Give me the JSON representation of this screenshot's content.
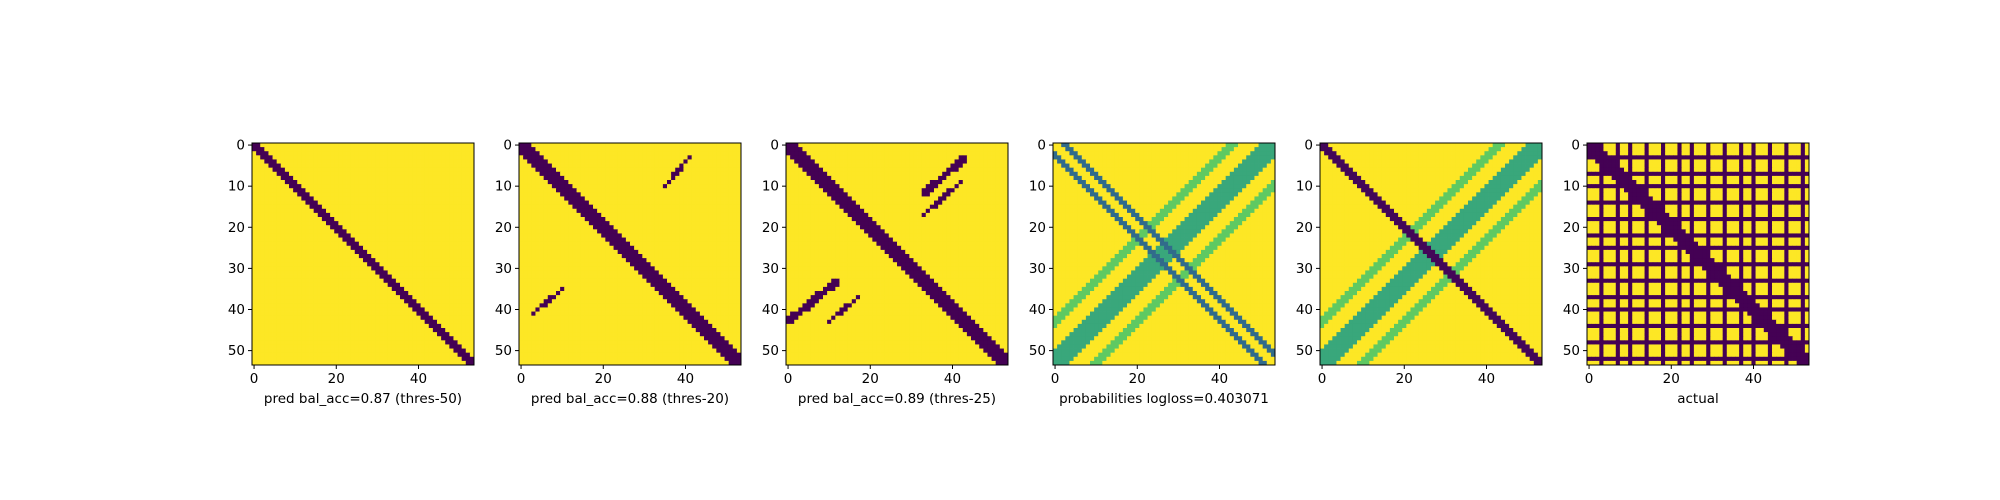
{
  "figure": {
    "panels": [
      {
        "id": "p1",
        "xlabel": "pred bal_acc=0.87 (thres-50)"
      },
      {
        "id": "p2",
        "xlabel": "pred bal_acc=0.88 (thres-20)"
      },
      {
        "id": "p3",
        "xlabel": "pred bal_acc=0.89 (thres-25)"
      },
      {
        "id": "p4",
        "xlabel": "probabilities logloss=0.403071"
      },
      {
        "id": "p5",
        "xlabel": ""
      },
      {
        "id": "p6",
        "xlabel": "actual"
      }
    ]
  },
  "chart_data": [
    {
      "type": "heatmap",
      "title": "",
      "xlabel": "pred bal_acc=0.87 (thres-50)",
      "ylabel": "",
      "size": [
        54,
        54
      ],
      "xlim": [
        0,
        54
      ],
      "ylim": [
        54,
        0
      ],
      "xticks": [
        0,
        20,
        40
      ],
      "yticks": [
        0,
        10,
        20,
        30,
        40,
        50
      ],
      "colormap": "viridis",
      "value_range": [
        0,
        1
      ],
      "features": [
        {
          "kind": "band",
          "orientation": "diagonal",
          "half_width": 1.6,
          "value": 0
        }
      ]
    },
    {
      "type": "heatmap",
      "title": "",
      "xlabel": "pred bal_acc=0.88 (thres-20)",
      "ylabel": "",
      "size": [
        54,
        54
      ],
      "xlim": [
        0,
        54
      ],
      "ylim": [
        54,
        0
      ],
      "xticks": [
        0,
        20,
        40
      ],
      "yticks": [
        0,
        10,
        20,
        30,
        40,
        50
      ],
      "colormap": "viridis",
      "value_range": [
        0,
        1
      ],
      "features": [
        {
          "kind": "band",
          "orientation": "diagonal",
          "half_width": 2.0,
          "value": 0
        },
        {
          "kind": "segment",
          "points": [
            [
              35,
              10
            ],
            [
              41,
              3
            ]
          ],
          "half_width": 0.5,
          "value": 0
        },
        {
          "kind": "segment",
          "points": [
            [
              3,
              41
            ],
            [
              10,
              35
            ]
          ],
          "half_width": 0.5,
          "value": 0
        }
      ]
    },
    {
      "type": "heatmap",
      "title": "",
      "xlabel": "pred bal_acc=0.89 (thres-25)",
      "ylabel": "",
      "size": [
        54,
        54
      ],
      "xlim": [
        0,
        54
      ],
      "ylim": [
        54,
        0
      ],
      "xticks": [
        0,
        20,
        40
      ],
      "yticks": [
        0,
        10,
        20,
        30,
        40,
        50
      ],
      "colormap": "viridis",
      "value_range": [
        0,
        1
      ],
      "features": [
        {
          "kind": "band",
          "orientation": "diagonal",
          "half_width": 2.4,
          "value": 0
        },
        {
          "kind": "segment",
          "points": [
            [
              33,
              12
            ],
            [
              43,
              3
            ]
          ],
          "half_width": 0.9,
          "value": 0
        },
        {
          "kind": "segment",
          "points": [
            [
              33,
              17
            ],
            [
              42,
              9
            ]
          ],
          "half_width": 0.5,
          "value": 0
        },
        {
          "kind": "segment",
          "points": [
            [
              0,
              43
            ],
            [
              12,
              33
            ]
          ],
          "half_width": 0.9,
          "value": 0
        },
        {
          "kind": "segment",
          "points": [
            [
              10,
              43
            ],
            [
              17,
              37
            ]
          ],
          "half_width": 0.5,
          "value": 0
        }
      ]
    },
    {
      "type": "heatmap",
      "title": "",
      "xlabel": "probabilities logloss=0.403071",
      "ylabel": "",
      "size": [
        54,
        54
      ],
      "xlim": [
        0,
        54
      ],
      "ylim": [
        54,
        0
      ],
      "xticks": [
        0,
        20,
        40
      ],
      "yticks": [
        0,
        10,
        20,
        30,
        40,
        50
      ],
      "colormap": "viridis",
      "value_range": [
        0,
        1
      ],
      "features": [
        {
          "kind": "band",
          "orientation": "diagonal",
          "offset": 2.5,
          "half_width": 0.7,
          "value": 0.35
        },
        {
          "kind": "band",
          "orientation": "diagonal",
          "offset": -2.5,
          "half_width": 0.7,
          "value": 0.35
        },
        {
          "kind": "band",
          "orientation": "anti-diagonal",
          "offset": 0,
          "half_width": 3.0,
          "value": 0.6
        },
        {
          "kind": "band",
          "orientation": "anti-diagonal",
          "offset": -10,
          "half_width": 1.5,
          "value": 0.75
        },
        {
          "kind": "band",
          "orientation": "anti-diagonal",
          "offset": 10,
          "half_width": 1.5,
          "value": 0.75
        }
      ]
    },
    {
      "type": "heatmap",
      "title": "",
      "xlabel": "",
      "ylabel": "",
      "size": [
        54,
        54
      ],
      "xlim": [
        0,
        54
      ],
      "ylim": [
        54,
        0
      ],
      "xticks": [
        0,
        20,
        40
      ],
      "yticks": [
        0,
        10,
        20,
        30,
        40,
        50
      ],
      "colormap": "viridis",
      "value_range": [
        0,
        1
      ],
      "features": [
        {
          "kind": "band",
          "orientation": "diagonal",
          "half_width": 1.8,
          "value": 0.02
        },
        {
          "kind": "band",
          "orientation": "anti-diagonal",
          "offset": 0,
          "half_width": 3.0,
          "value": 0.6
        },
        {
          "kind": "band",
          "orientation": "anti-diagonal",
          "offset": -10,
          "half_width": 1.5,
          "value": 0.75
        },
        {
          "kind": "band",
          "orientation": "anti-diagonal",
          "offset": 10,
          "half_width": 1.5,
          "value": 0.75
        }
      ]
    },
    {
      "type": "heatmap",
      "title": "",
      "xlabel": "actual",
      "ylabel": "",
      "size": [
        54,
        54
      ],
      "xlim": [
        0,
        54
      ],
      "ylim": [
        54,
        0
      ],
      "xticks": [
        0,
        20,
        40
      ],
      "yticks": [
        0,
        10,
        20,
        30,
        40,
        50
      ],
      "colormap": "viridis",
      "value_range": [
        0,
        1
      ],
      "features": [
        {
          "kind": "band",
          "orientation": "diagonal",
          "half_width": 2.0,
          "value": 0
        },
        {
          "kind": "grid_rows",
          "indices": [
            3,
            7,
            10,
            14,
            18,
            22,
            25,
            29,
            33,
            37,
            40,
            44,
            48,
            52
          ],
          "value": 0
        },
        {
          "kind": "grid_cols",
          "indices": [
            3,
            7,
            10,
            14,
            18,
            22,
            25,
            29,
            33,
            37,
            40,
            44,
            48,
            52
          ],
          "value": 0
        }
      ]
    }
  ]
}
